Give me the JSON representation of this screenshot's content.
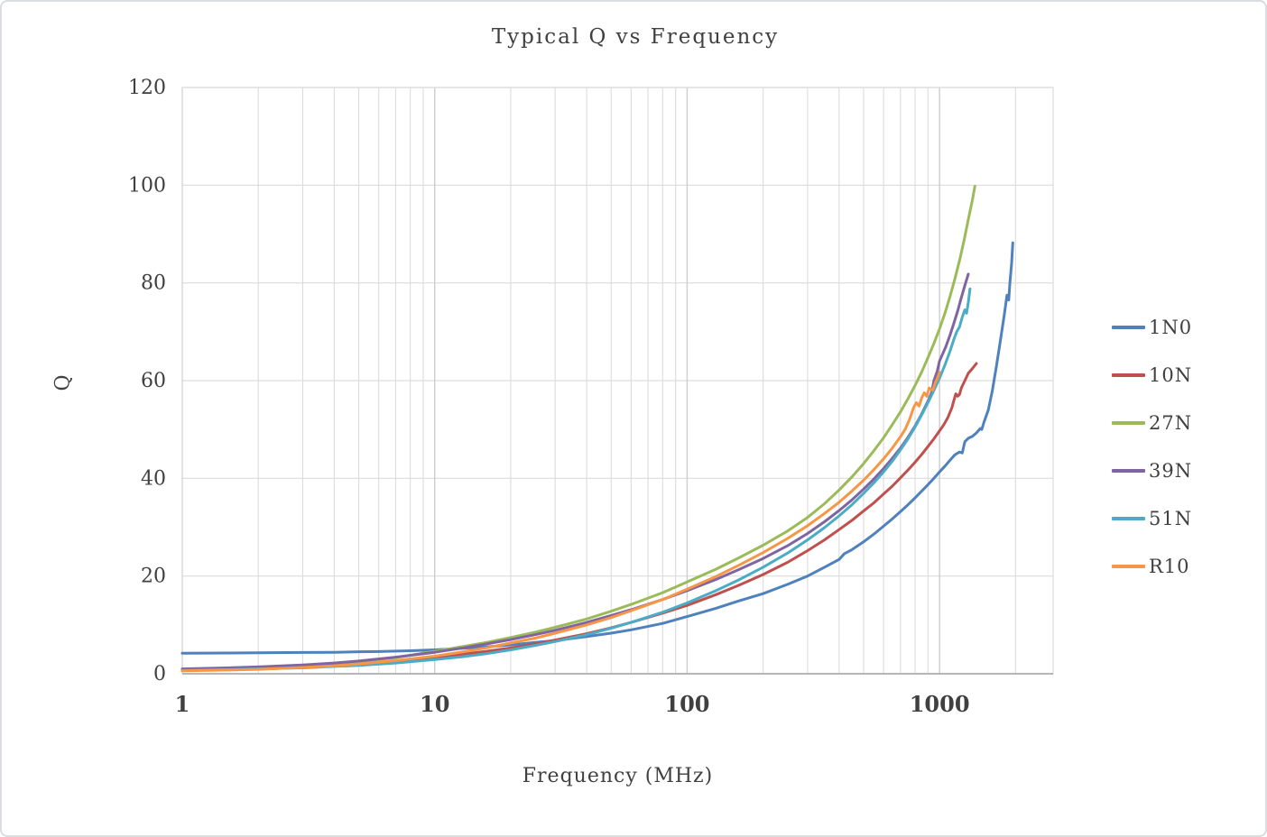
{
  "window": {
    "background": "#FFFFFF",
    "border_color": "#D9DDE1"
  },
  "chart_data": {
    "type": "line",
    "title": "Typical Q vs Frequency",
    "xlabel": "Frequency (MHz)",
    "ylabel": "Q",
    "x_scale": "log",
    "xlim": [
      1,
      2818
    ],
    "ylim": [
      0,
      120
    ],
    "x_ticks": [
      1,
      10,
      100,
      1000
    ],
    "y_ticks": [
      0,
      20,
      40,
      60,
      80,
      100,
      120
    ],
    "grid": true,
    "minor_grid_x": true,
    "grid_color": "#DCDCDC",
    "major_grid_color": "#CDCDCD",
    "axis_color": "#A6A6A6",
    "legend_position": "right",
    "series": [
      {
        "name": "1N0",
        "color": "#4F81BD",
        "points": [
          [
            1,
            4.2
          ],
          [
            1.5,
            4.25
          ],
          [
            2,
            4.3
          ],
          [
            3,
            4.35
          ],
          [
            4,
            4.4
          ],
          [
            5,
            4.5
          ],
          [
            6,
            4.55
          ],
          [
            8,
            4.7
          ],
          [
            10,
            4.9
          ],
          [
            13,
            5.2
          ],
          [
            16,
            5.5
          ],
          [
            20,
            5.9
          ],
          [
            25,
            6.4
          ],
          [
            30,
            6.8
          ],
          [
            40,
            7.6
          ],
          [
            50,
            8.3
          ],
          [
            60,
            9.0
          ],
          [
            80,
            10.3
          ],
          [
            100,
            11.7
          ],
          [
            130,
            13.4
          ],
          [
            160,
            14.9
          ],
          [
            200,
            16.4
          ],
          [
            250,
            18.3
          ],
          [
            300,
            20.0
          ],
          [
            350,
            21.8
          ],
          [
            400,
            23.4
          ],
          [
            420,
            24.6
          ],
          [
            450,
            25.4
          ],
          [
            500,
            27.0
          ],
          [
            550,
            28.6
          ],
          [
            600,
            30.2
          ],
          [
            650,
            31.7
          ],
          [
            700,
            33.2
          ],
          [
            750,
            34.6
          ],
          [
            800,
            36.0
          ],
          [
            850,
            37.4
          ],
          [
            900,
            38.7
          ],
          [
            950,
            40.0
          ],
          [
            1000,
            41.3
          ],
          [
            1050,
            42.5
          ],
          [
            1100,
            43.7
          ],
          [
            1150,
            44.8
          ],
          [
            1200,
            45.4
          ],
          [
            1230,
            45.2
          ],
          [
            1260,
            47.5
          ],
          [
            1300,
            48.2
          ],
          [
            1350,
            48.6
          ],
          [
            1400,
            49.3
          ],
          [
            1450,
            50.2
          ],
          [
            1470,
            50.0
          ],
          [
            1500,
            51.5
          ],
          [
            1560,
            54.0
          ],
          [
            1620,
            58.0
          ],
          [
            1680,
            63.0
          ],
          [
            1740,
            68.0
          ],
          [
            1800,
            73.0
          ],
          [
            1850,
            77.5
          ],
          [
            1880,
            76.5
          ],
          [
            1900,
            80.0
          ],
          [
            1930,
            84.0
          ],
          [
            1950,
            88.2
          ]
        ]
      },
      {
        "name": "10N",
        "color": "#C0504D",
        "points": [
          [
            1,
            0.8
          ],
          [
            1.5,
            1.0
          ],
          [
            2,
            1.1
          ],
          [
            3,
            1.4
          ],
          [
            4,
            1.7
          ],
          [
            5,
            2.0
          ],
          [
            7,
            2.6
          ],
          [
            10,
            3.4
          ],
          [
            13,
            4.0
          ],
          [
            16,
            4.6
          ],
          [
            20,
            5.3
          ],
          [
            25,
            6.1
          ],
          [
            30,
            6.9
          ],
          [
            40,
            8.2
          ],
          [
            50,
            9.4
          ],
          [
            60,
            10.5
          ],
          [
            80,
            12.4
          ],
          [
            100,
            14.0
          ],
          [
            130,
            16.2
          ],
          [
            160,
            18.1
          ],
          [
            200,
            20.3
          ],
          [
            250,
            22.8
          ],
          [
            300,
            25.2
          ],
          [
            350,
            27.4
          ],
          [
            400,
            29.5
          ],
          [
            450,
            31.4
          ],
          [
            500,
            33.3
          ],
          [
            550,
            35.0
          ],
          [
            600,
            36.8
          ],
          [
            650,
            38.4
          ],
          [
            700,
            40.1
          ],
          [
            750,
            41.7
          ],
          [
            800,
            43.3
          ],
          [
            850,
            44.9
          ],
          [
            900,
            46.5
          ],
          [
            950,
            48.1
          ],
          [
            1000,
            49.7
          ],
          [
            1040,
            51.0
          ],
          [
            1080,
            52.5
          ],
          [
            1100,
            53.5
          ],
          [
            1120,
            54.5
          ],
          [
            1140,
            56.0
          ],
          [
            1160,
            57.3
          ],
          [
            1180,
            56.8
          ],
          [
            1200,
            57.2
          ],
          [
            1220,
            58.5
          ],
          [
            1260,
            60.0
          ],
          [
            1300,
            61.5
          ],
          [
            1350,
            62.5
          ],
          [
            1400,
            63.5
          ]
        ]
      },
      {
        "name": "27N",
        "color": "#9BBB59",
        "points": [
          [
            1,
            0.9
          ],
          [
            1.5,
            1.1
          ],
          [
            2,
            1.3
          ],
          [
            3,
            1.7
          ],
          [
            4,
            2.1
          ],
          [
            5,
            2.5
          ],
          [
            7,
            3.3
          ],
          [
            10,
            4.6
          ],
          [
            13,
            5.6
          ],
          [
            16,
            6.4
          ],
          [
            20,
            7.4
          ],
          [
            25,
            8.5
          ],
          [
            30,
            9.5
          ],
          [
            40,
            11.2
          ],
          [
            50,
            12.8
          ],
          [
            60,
            14.2
          ],
          [
            80,
            16.6
          ],
          [
            100,
            18.8
          ],
          [
            130,
            21.4
          ],
          [
            160,
            23.7
          ],
          [
            200,
            26.3
          ],
          [
            250,
            29.2
          ],
          [
            300,
            32.0
          ],
          [
            350,
            34.8
          ],
          [
            400,
            37.6
          ],
          [
            450,
            40.3
          ],
          [
            500,
            43.0
          ],
          [
            550,
            45.7
          ],
          [
            600,
            48.3
          ],
          [
            650,
            51.0
          ],
          [
            700,
            53.6
          ],
          [
            750,
            56.3
          ],
          [
            800,
            59.0
          ],
          [
            850,
            61.8
          ],
          [
            900,
            64.7
          ],
          [
            950,
            67.6
          ],
          [
            1000,
            70.6
          ],
          [
            1050,
            73.8
          ],
          [
            1100,
            77.2
          ],
          [
            1150,
            80.8
          ],
          [
            1200,
            84.6
          ],
          [
            1250,
            88.7
          ],
          [
            1300,
            93.0
          ],
          [
            1350,
            97.0
          ],
          [
            1380,
            99.8
          ]
        ]
      },
      {
        "name": "39N",
        "color": "#8064A2",
        "points": [
          [
            1,
            1.0
          ],
          [
            1.5,
            1.2
          ],
          [
            2,
            1.4
          ],
          [
            3,
            1.8
          ],
          [
            4,
            2.2
          ],
          [
            5,
            2.6
          ],
          [
            7,
            3.4
          ],
          [
            10,
            4.4
          ],
          [
            13,
            5.3
          ],
          [
            16,
            6.1
          ],
          [
            20,
            7.0
          ],
          [
            25,
            8.0
          ],
          [
            30,
            8.9
          ],
          [
            40,
            10.5
          ],
          [
            50,
            11.9
          ],
          [
            60,
            13.1
          ],
          [
            80,
            15.2
          ],
          [
            100,
            17.0
          ],
          [
            130,
            19.3
          ],
          [
            160,
            21.3
          ],
          [
            200,
            23.6
          ],
          [
            250,
            26.2
          ],
          [
            300,
            28.7
          ],
          [
            350,
            31.1
          ],
          [
            400,
            33.4
          ],
          [
            450,
            35.6
          ],
          [
            500,
            37.8
          ],
          [
            550,
            39.9
          ],
          [
            600,
            42.0
          ],
          [
            650,
            44.1
          ],
          [
            700,
            46.2
          ],
          [
            750,
            48.4
          ],
          [
            800,
            50.7
          ],
          [
            850,
            53.2
          ],
          [
            900,
            55.8
          ],
          [
            930,
            57.5
          ],
          [
            950,
            60.0
          ],
          [
            980,
            62.0
          ],
          [
            1000,
            64.0
          ],
          [
            1030,
            65.5
          ],
          [
            1060,
            67.0
          ],
          [
            1100,
            69.3
          ],
          [
            1140,
            71.8
          ],
          [
            1180,
            74.3
          ],
          [
            1220,
            77.0
          ],
          [
            1260,
            79.5
          ],
          [
            1300,
            81.8
          ]
        ]
      },
      {
        "name": "51N",
        "color": "#4BACC6",
        "points": [
          [
            1,
            0.7
          ],
          [
            1.5,
            0.85
          ],
          [
            2,
            1.0
          ],
          [
            3,
            1.2
          ],
          [
            4,
            1.5
          ],
          [
            5,
            1.7
          ],
          [
            7,
            2.2
          ],
          [
            10,
            2.9
          ],
          [
            13,
            3.5
          ],
          [
            16,
            4.1
          ],
          [
            20,
            4.9
          ],
          [
            25,
            5.8
          ],
          [
            30,
            6.6
          ],
          [
            40,
            8.0
          ],
          [
            50,
            9.3
          ],
          [
            60,
            10.5
          ],
          [
            80,
            12.6
          ],
          [
            100,
            14.5
          ],
          [
            130,
            17.0
          ],
          [
            160,
            19.2
          ],
          [
            200,
            21.8
          ],
          [
            250,
            24.7
          ],
          [
            300,
            27.4
          ],
          [
            350,
            29.9
          ],
          [
            400,
            32.3
          ],
          [
            450,
            34.6
          ],
          [
            500,
            36.9
          ],
          [
            550,
            39.1
          ],
          [
            600,
            41.3
          ],
          [
            650,
            43.5
          ],
          [
            700,
            45.8
          ],
          [
            750,
            48.1
          ],
          [
            800,
            50.5
          ],
          [
            850,
            53.0
          ],
          [
            900,
            55.5
          ],
          [
            950,
            58.0
          ],
          [
            1000,
            60.5
          ],
          [
            1050,
            63.2
          ],
          [
            1100,
            66.0
          ],
          [
            1140,
            68.5
          ],
          [
            1170,
            70.0
          ],
          [
            1200,
            71.0
          ],
          [
            1230,
            73.0
          ],
          [
            1260,
            74.5
          ],
          [
            1280,
            73.8
          ],
          [
            1300,
            76.0
          ],
          [
            1320,
            78.8
          ]
        ]
      },
      {
        "name": "R10",
        "color": "#F79646",
        "points": [
          [
            1,
            0.6
          ],
          [
            1.5,
            0.75
          ],
          [
            2,
            0.9
          ],
          [
            3,
            1.3
          ],
          [
            4,
            1.6
          ],
          [
            5,
            2.0
          ],
          [
            7,
            2.7
          ],
          [
            10,
            3.6
          ],
          [
            13,
            4.5
          ],
          [
            16,
            5.3
          ],
          [
            20,
            6.3
          ],
          [
            25,
            7.3
          ],
          [
            30,
            8.3
          ],
          [
            40,
            10.0
          ],
          [
            50,
            11.5
          ],
          [
            60,
            12.9
          ],
          [
            80,
            15.2
          ],
          [
            100,
            17.3
          ],
          [
            130,
            19.9
          ],
          [
            160,
            22.2
          ],
          [
            200,
            24.8
          ],
          [
            250,
            27.7
          ],
          [
            300,
            30.3
          ],
          [
            350,
            32.8
          ],
          [
            400,
            35.1
          ],
          [
            450,
            37.4
          ],
          [
            500,
            39.6
          ],
          [
            550,
            41.8
          ],
          [
            600,
            44.0
          ],
          [
            650,
            46.2
          ],
          [
            700,
            48.5
          ],
          [
            730,
            50.0
          ],
          [
            760,
            52.0
          ],
          [
            790,
            54.5
          ],
          [
            810,
            55.5
          ],
          [
            830,
            54.8
          ],
          [
            850,
            56.5
          ],
          [
            870,
            57.5
          ],
          [
            890,
            56.8
          ],
          [
            910,
            58.5
          ],
          [
            940,
            58.0
          ],
          [
            960,
            59.5
          ],
          [
            980,
            60.5
          ],
          [
            1000,
            61.7
          ]
        ]
      }
    ]
  }
}
